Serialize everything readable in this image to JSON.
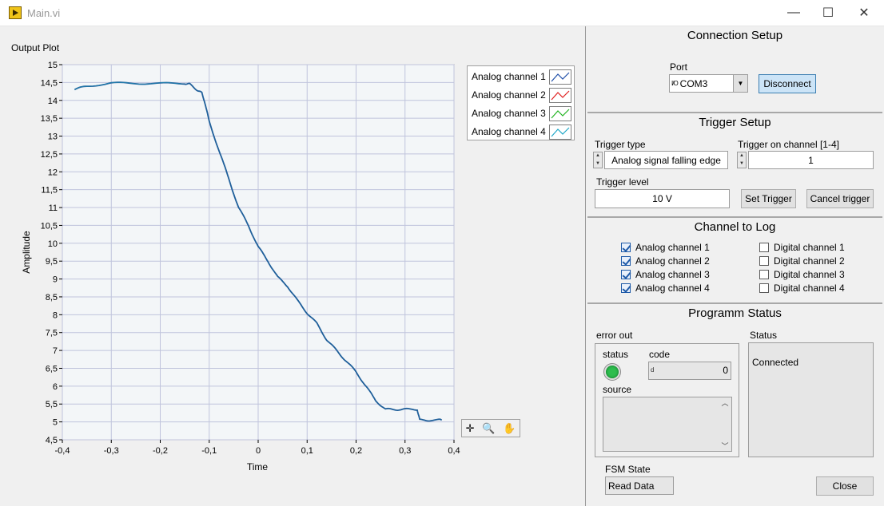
{
  "window": {
    "title": "Main.vi",
    "minimize_label": "—",
    "maximize_label": "☐",
    "close_label": "✕"
  },
  "plot": {
    "title": "Output Plot",
    "legend": [
      {
        "name": "Analog channel 1",
        "color": "#1f4ea8"
      },
      {
        "name": "Analog channel 2",
        "color": "#e02020"
      },
      {
        "name": "Analog channel 3",
        "color": "#22b422"
      },
      {
        "name": "Analog channel 4",
        "color": "#20a8c8"
      }
    ],
    "tools": {
      "cursor_icon": "crosshair-icon",
      "zoom_icon": "zoom-icon",
      "pan_icon": "hand-icon"
    }
  },
  "chart_data": {
    "type": "line",
    "title": "Output Plot",
    "xlabel": "Time",
    "ylabel": "Amplitude",
    "xlim": [
      -0.4,
      0.4
    ],
    "ylim": [
      4.5,
      15
    ],
    "xticks": [
      "-0,4",
      "-0,3",
      "-0,2",
      "-0,1",
      "0",
      "0,1",
      "0,2",
      "0,3",
      "0,4"
    ],
    "yticks": [
      "15",
      "14,5",
      "14",
      "13,5",
      "13",
      "12,5",
      "12",
      "11,5",
      "11",
      "10,5",
      "10",
      "9,5",
      "9",
      "8,5",
      "8",
      "7,5",
      "7",
      "6,5",
      "6",
      "5,5",
      "5",
      "4,5"
    ],
    "grid": true,
    "legend_position": "top-right",
    "series": [
      {
        "name": "Analog channel 4",
        "x": [
          -0.375,
          -0.35,
          -0.3,
          -0.25,
          -0.2,
          -0.15,
          -0.14,
          -0.125,
          -0.115,
          -0.11,
          -0.1,
          -0.08,
          -0.06,
          -0.04,
          -0.02,
          0.0,
          0.02,
          0.04,
          0.06,
          0.08,
          0.1,
          0.12,
          0.14,
          0.16,
          0.18,
          0.2,
          0.22,
          0.24,
          0.26,
          0.28,
          0.3,
          0.325,
          0.33,
          0.35,
          0.375
        ],
        "y": [
          14.3,
          14.4,
          14.48,
          14.48,
          14.47,
          14.48,
          14.45,
          14.3,
          14.2,
          14.0,
          13.4,
          12.6,
          11.8,
          11.0,
          10.5,
          9.9,
          9.5,
          9.05,
          8.8,
          8.4,
          8.05,
          7.75,
          7.3,
          7.0,
          6.7,
          6.4,
          6.0,
          5.6,
          5.35,
          5.35,
          5.35,
          5.35,
          5.05,
          5.05,
          5.05
        ]
      }
    ]
  },
  "connection": {
    "title": "Connection Setup",
    "port_label": "Port",
    "port_prefix": "I/O",
    "port_value": "COM3",
    "disconnect_label": "Disconnect"
  },
  "trigger": {
    "title": "Trigger Setup",
    "type_label": "Trigger type",
    "type_value": "Analog signal falling edge",
    "channel_label": "Trigger on channel [1-4]",
    "channel_value": "1",
    "level_label": "Trigger level",
    "level_value": "10 V",
    "set_label": "Set Trigger",
    "cancel_label": "Cancel trigger"
  },
  "log": {
    "title": "Channel to Log",
    "analog": [
      {
        "label": "Analog channel 1",
        "checked": true
      },
      {
        "label": "Analog channel 2",
        "checked": true
      },
      {
        "label": "Analog channel 3",
        "checked": true
      },
      {
        "label": "Analog channel 4",
        "checked": true
      }
    ],
    "digital": [
      {
        "label": "Digital channel 1",
        "checked": false
      },
      {
        "label": "Digital channel 2",
        "checked": false
      },
      {
        "label": "Digital channel 3",
        "checked": false
      },
      {
        "label": "Digital channel 4",
        "checked": false
      }
    ]
  },
  "status": {
    "title": "Programm Status",
    "error_out_label": "error out",
    "status_label": "status",
    "code_label": "code",
    "code_prefix": "d",
    "code_value": "0",
    "source_label": "source",
    "status_box_label": "Status",
    "status_text": "Connected",
    "led_color": "#2ebd4e",
    "fsm_label": "FSM State",
    "fsm_value": "Read Data",
    "close_label": "Close"
  }
}
